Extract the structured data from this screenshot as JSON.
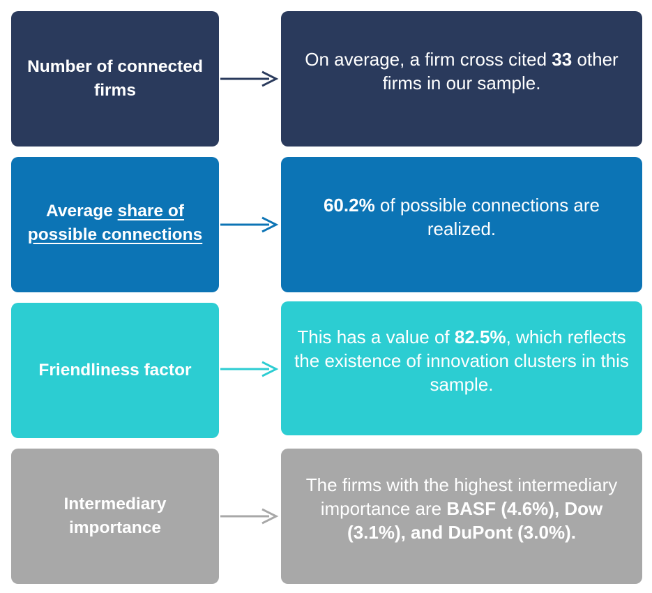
{
  "rows": [
    {
      "metric": "Number of connected firms",
      "desc_pre": "On average, a firm cross cited ",
      "desc_bold": "33",
      "desc_post": " other firms in our sample.",
      "color": "#2a3a5c"
    },
    {
      "metric_pre": "Average ",
      "metric_link": "share of possible connections",
      "desc_bold": "60.2%",
      "desc_post": " of possible connections are realized.",
      "color": "#0c74b5"
    },
    {
      "metric": "Friendliness factor",
      "desc_pre": "This has a value of ",
      "desc_bold": "82.5%",
      "desc_post": ", which reflects the existence of innovation clusters in this sample.",
      "color": "#2ccdd2"
    },
    {
      "metric": "Intermediary importance",
      "desc_pre": "The firms with the highest intermediary importance are ",
      "desc_bold": "BASF (4.6%), Dow (3.1%), and DuPont (3.0%).",
      "color": "#a8a8a8"
    }
  ],
  "arrow_colors": [
    "#2a3a5c",
    "#0c74b5",
    "#2ccdd2",
    "#a8a8a8"
  ]
}
